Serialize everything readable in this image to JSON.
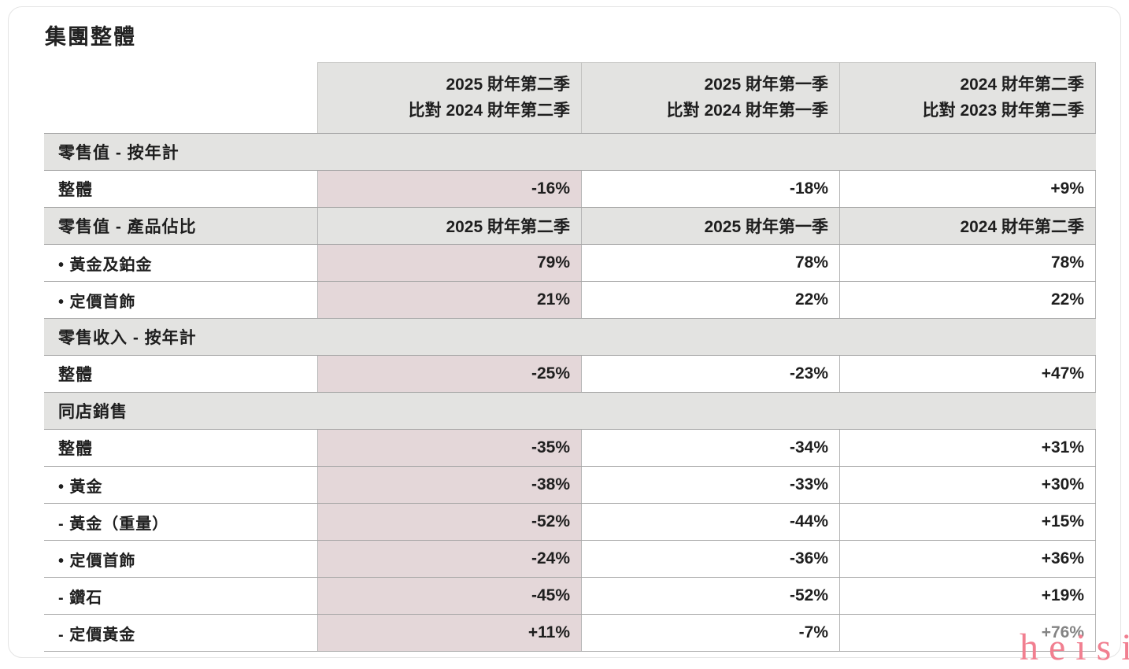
{
  "page": {
    "title": "集團整體"
  },
  "watermark": {
    "text": "heisi",
    "color": "#f17f90"
  },
  "colors": {
    "section_bg": "#e3e3e1",
    "highlight_column_bg": "#e4d7d9",
    "row_border": "#a6a6a6",
    "text": "#1e1e1e"
  },
  "table": {
    "header": {
      "col1_line1": "2025 財年第二季",
      "col1_line2": "比對 2024 財年第二季",
      "col2_line1": "2025 財年第一季",
      "col2_line2": "比對 2024 財年第一季",
      "col3_line1": "2024 財年第二季",
      "col3_line2": "比對 2023 財年第二季"
    },
    "rows": [
      {
        "type": "section",
        "label": "零售值 - 按年計"
      },
      {
        "type": "data",
        "bold": true,
        "indent": 0,
        "label": "整體",
        "values": [
          "-16%",
          "-18%",
          "+9%"
        ]
      },
      {
        "type": "section-values",
        "label": "零售值 - 產品佔比",
        "values": [
          "2025 財年第二季",
          "2025 財年第一季",
          "2024 財年第二季"
        ]
      },
      {
        "type": "data",
        "bold": false,
        "indent": 1,
        "label": "• 黃金及鉑金",
        "values": [
          "79%",
          "78%",
          "78%"
        ]
      },
      {
        "type": "data",
        "bold": false,
        "indent": 1,
        "label": "• 定價首飾",
        "values": [
          "21%",
          "22%",
          "22%"
        ]
      },
      {
        "type": "section",
        "label": "零售收入 - 按年計"
      },
      {
        "type": "data",
        "bold": true,
        "indent": 0,
        "label": "整體",
        "values": [
          "-25%",
          "-23%",
          "+47%"
        ]
      },
      {
        "type": "section",
        "label": "同店銷售"
      },
      {
        "type": "data",
        "bold": true,
        "indent": 0,
        "label": "整體",
        "values": [
          "-35%",
          "-34%",
          "+31%"
        ]
      },
      {
        "type": "data",
        "bold": false,
        "indent": 1,
        "label": "• 黃金",
        "values": [
          "-38%",
          "-33%",
          "+30%"
        ]
      },
      {
        "type": "data",
        "bold": false,
        "indent": 2,
        "label": "- 黃金（重量）",
        "values": [
          "-52%",
          "-44%",
          "+15%"
        ]
      },
      {
        "type": "data",
        "bold": false,
        "indent": 1,
        "label": "• 定價首飾",
        "values": [
          "-24%",
          "-36%",
          "+36%"
        ]
      },
      {
        "type": "data",
        "bold": false,
        "indent": 2,
        "label": "- 鑽石",
        "values": [
          "-45%",
          "-52%",
          "+19%"
        ]
      },
      {
        "type": "data",
        "bold": false,
        "indent": 2,
        "label": "- 定價黃金",
        "values": [
          "+11%",
          "-7%",
          "+76%"
        ],
        "degraded_last": true
      }
    ]
  }
}
